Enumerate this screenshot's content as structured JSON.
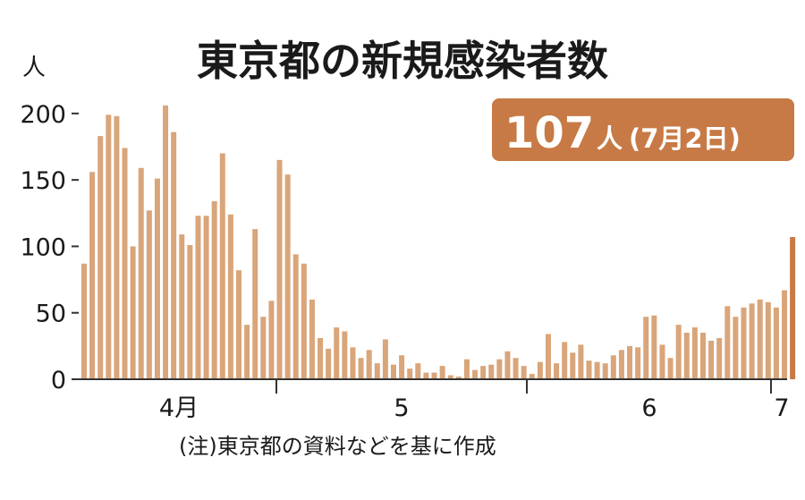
{
  "chart_data": {
    "type": "bar",
    "title": "東京都の新規感染者数",
    "ylabel": "人",
    "ylim": [
      0,
      210
    ],
    "yticks": [
      0,
      50,
      100,
      150,
      200
    ],
    "month_labels": [
      "4月",
      "5",
      "6",
      "7"
    ],
    "bar_color": "#d9a57a",
    "highlight_color": "#c77a45",
    "callout": {
      "value": "107",
      "unit": "人",
      "date": "(7月2日)"
    },
    "note": "(注)東京都の資料などを基に作成",
    "values": [
      87,
      156,
      183,
      199,
      198,
      174,
      100,
      159,
      127,
      151,
      206,
      186,
      109,
      101,
      123,
      123,
      134,
      170,
      124,
      82,
      41,
      113,
      47,
      59,
      165,
      154,
      94,
      87,
      60,
      31,
      23,
      39,
      36,
      24,
      16,
      22,
      12,
      30,
      11,
      18,
      8,
      12,
      5,
      5,
      10,
      3,
      2,
      15,
      7,
      10,
      11,
      15,
      21,
      16,
      10,
      4,
      13,
      34,
      12,
      28,
      20,
      26,
      14,
      13,
      12,
      18,
      22,
      25,
      24,
      47,
      48,
      26,
      16,
      41,
      35,
      39,
      35,
      29,
      31,
      55,
      47,
      54,
      57,
      60,
      58,
      54,
      67,
      107
    ]
  }
}
